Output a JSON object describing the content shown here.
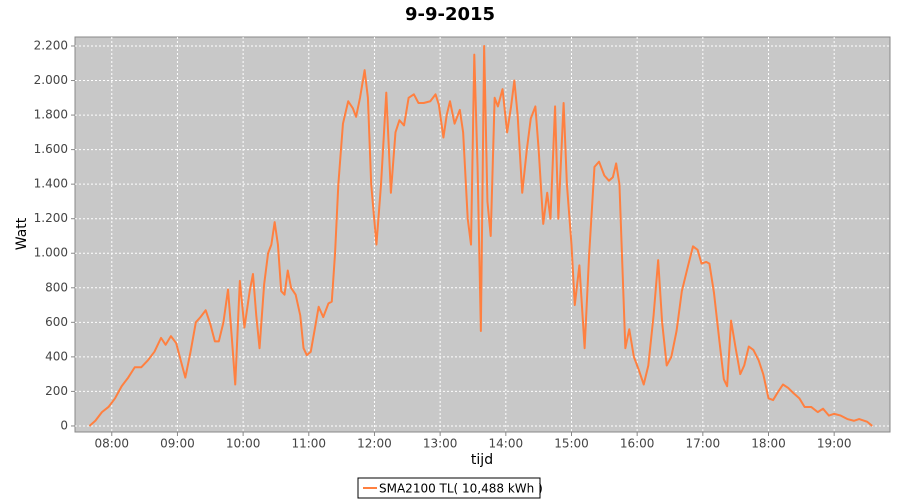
{
  "chart_data": {
    "type": "line",
    "title": "9-9-2015",
    "x_label": "tijd",
    "y_label": "Watt",
    "x": [
      7.66,
      7.75,
      7.85,
      7.95,
      8.05,
      8.15,
      8.25,
      8.35,
      8.45,
      8.55,
      8.65,
      8.75,
      8.82,
      8.9,
      8.98,
      9.05,
      9.12,
      9.2,
      9.28,
      9.35,
      9.43,
      9.5,
      9.57,
      9.63,
      9.7,
      9.77,
      9.83,
      9.88,
      9.95,
      10.02,
      10.1,
      10.15,
      10.2,
      10.25,
      10.32,
      10.38,
      10.43,
      10.48,
      10.53,
      10.58,
      10.63,
      10.68,
      10.73,
      10.8,
      10.87,
      10.92,
      10.97,
      11.03,
      11.1,
      11.15,
      11.22,
      11.3,
      11.35,
      11.4,
      11.45,
      11.52,
      11.6,
      11.67,
      11.72,
      11.78,
      11.85,
      11.9,
      11.95,
      12.03,
      12.1,
      12.18,
      12.25,
      12.32,
      12.38,
      12.45,
      12.52,
      12.6,
      12.67,
      12.75,
      12.85,
      12.93,
      12.98,
      13.05,
      13.1,
      13.15,
      13.22,
      13.3,
      13.35,
      13.42,
      13.47,
      13.52,
      13.57,
      13.62,
      13.67,
      13.72,
      13.77,
      13.83,
      13.88,
      13.95,
      14.02,
      14.08,
      14.13,
      14.18,
      14.25,
      14.32,
      14.38,
      14.45,
      14.5,
      14.57,
      14.63,
      14.68,
      14.75,
      14.8,
      14.88,
      14.93,
      15.0,
      15.05,
      15.12,
      15.2,
      15.27,
      15.35,
      15.42,
      15.5,
      15.57,
      15.63,
      15.68,
      15.73,
      15.82,
      15.88,
      15.95,
      16.02,
      16.1,
      16.17,
      16.25,
      16.32,
      16.38,
      16.45,
      16.52,
      16.6,
      16.68,
      16.77,
      16.85,
      16.92,
      16.98,
      17.05,
      17.1,
      17.17,
      17.25,
      17.32,
      17.37,
      17.43,
      17.5,
      17.57,
      17.63,
      17.7,
      17.77,
      17.85,
      17.92,
      18.0,
      18.07,
      18.15,
      18.22,
      18.3,
      18.38,
      18.47,
      18.55,
      18.65,
      18.75,
      18.83,
      18.92,
      19.0,
      19.1,
      19.2,
      19.3,
      19.38,
      19.5,
      19.58
    ],
    "series": [
      {
        "name": "SMA2100 TL( 10,488 kWh )",
        "color": "#ff8040",
        "values": [
          0,
          30,
          80,
          110,
          160,
          230,
          280,
          340,
          340,
          380,
          430,
          510,
          470,
          520,
          480,
          380,
          280,
          430,
          600,
          630,
          670,
          590,
          490,
          490,
          600,
          790,
          500,
          240,
          840,
          570,
          780,
          880,
          640,
          450,
          820,
          1000,
          1050,
          1180,
          1050,
          780,
          760,
          900,
          800,
          760,
          640,
          450,
          410,
          430,
          580,
          690,
          630,
          710,
          720,
          1000,
          1400,
          1750,
          1880,
          1840,
          1790,
          1900,
          2060,
          1900,
          1400,
          1050,
          1400,
          1930,
          1350,
          1700,
          1770,
          1740,
          1900,
          1920,
          1870,
          1870,
          1880,
          1920,
          1860,
          1670,
          1800,
          1880,
          1750,
          1830,
          1700,
          1200,
          1050,
          2150,
          1500,
          550,
          2200,
          1300,
          1100,
          1900,
          1850,
          1950,
          1700,
          1850,
          2000,
          1800,
          1350,
          1600,
          1780,
          1850,
          1600,
          1170,
          1350,
          1200,
          1850,
          1200,
          1870,
          1400,
          1050,
          700,
          930,
          450,
          1000,
          1500,
          1530,
          1450,
          1420,
          1440,
          1520,
          1400,
          450,
          560,
          400,
          330,
          240,
          350,
          640,
          960,
          600,
          350,
          400,
          550,
          780,
          920,
          1040,
          1020,
          940,
          950,
          940,
          770,
          500,
          270,
          230,
          610,
          450,
          300,
          350,
          460,
          440,
          380,
          300,
          160,
          150,
          200,
          240,
          220,
          190,
          160,
          110,
          110,
          80,
          100,
          60,
          70,
          60,
          40,
          30,
          40,
          25,
          0
        ]
      }
    ],
    "xlim": [
      7.44,
      19.85
    ],
    "xticks": [
      {
        "value": 8,
        "label": "08:00"
      },
      {
        "value": 9,
        "label": "09:00"
      },
      {
        "value": 10,
        "label": "10:00"
      },
      {
        "value": 11,
        "label": "11:00"
      },
      {
        "value": 12,
        "label": "12:00"
      },
      {
        "value": 13,
        "label": "13:00"
      },
      {
        "value": 14,
        "label": "14:00"
      },
      {
        "value": 15,
        "label": "15:00"
      },
      {
        "value": 16,
        "label": "16:00"
      },
      {
        "value": 17,
        "label": "17:00"
      },
      {
        "value": 18,
        "label": "18:00"
      },
      {
        "value": 19,
        "label": "19:00"
      }
    ],
    "ylim": [
      -35,
      2252
    ],
    "yticks": [
      0,
      200,
      400,
      600,
      800,
      {
        "value": 1000,
        "label": "1.000"
      },
      {
        "value": 1200,
        "label": "1.200"
      },
      {
        "value": 1400,
        "label": "1.400"
      },
      {
        "value": 1600,
        "label": "1.600"
      },
      {
        "value": 1800,
        "label": "1.800"
      },
      {
        "value": 2000,
        "label": "2.000"
      },
      {
        "value": 2200,
        "label": "2.200"
      }
    ],
    "grid": true
  }
}
